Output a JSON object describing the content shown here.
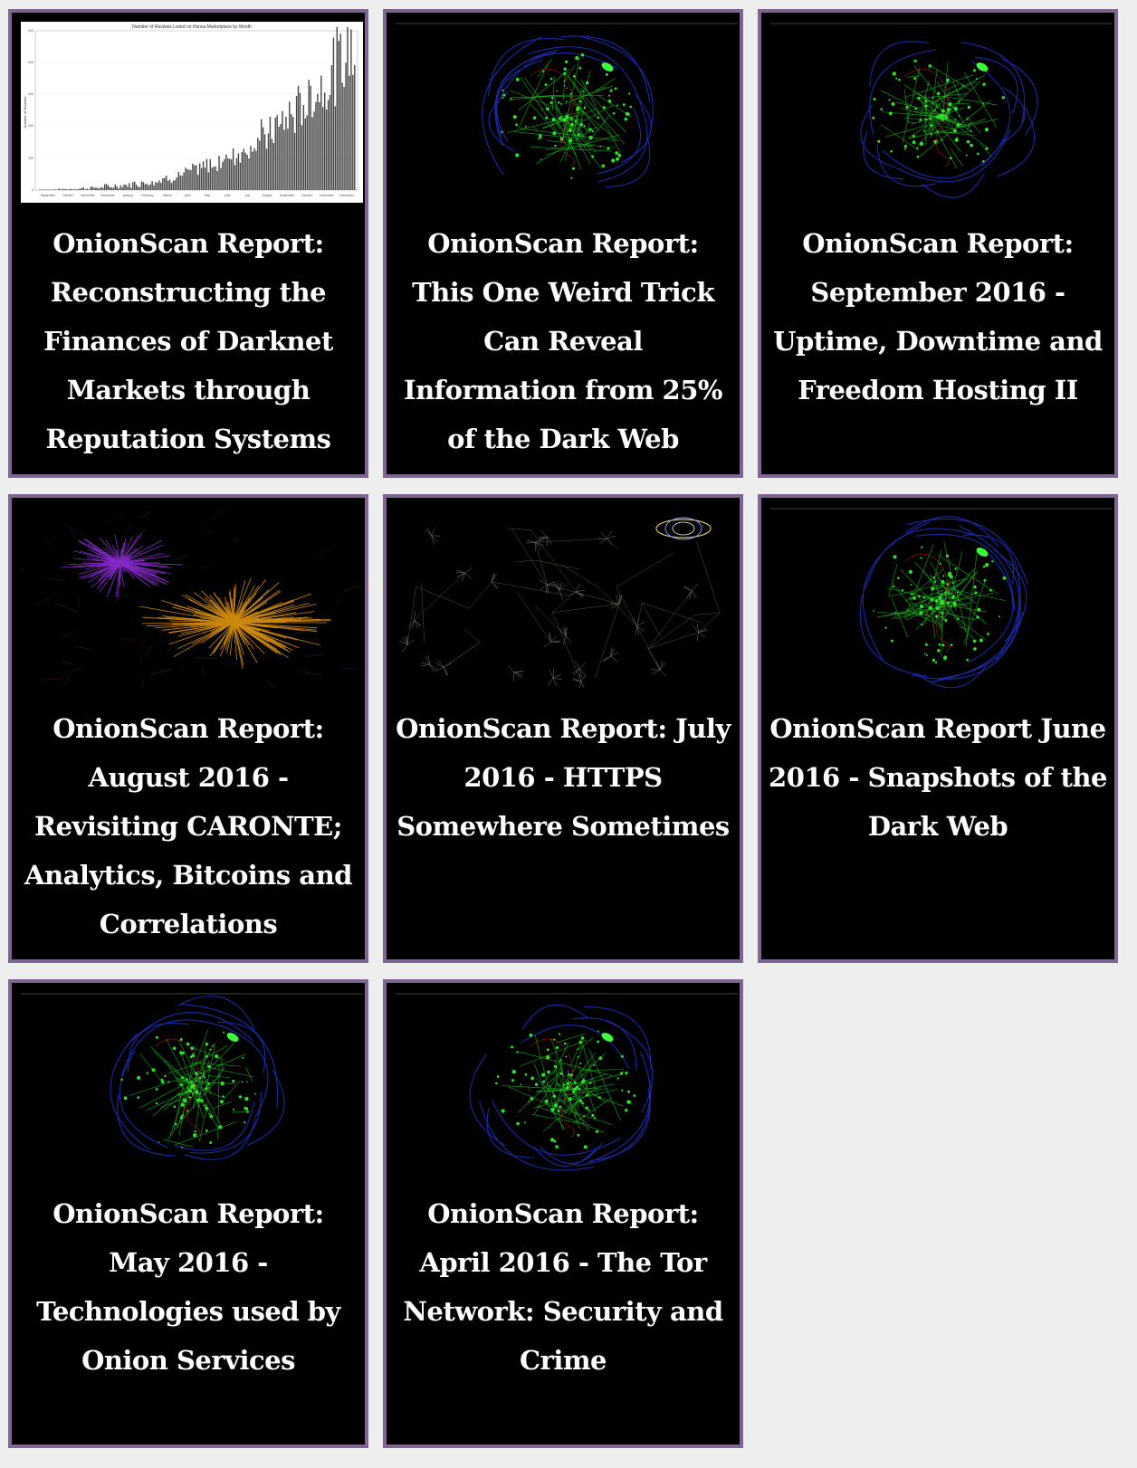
{
  "cards": [
    {
      "title": "OnionScan Report: Reconstructing the Finances of Darknet Markets through Reputation Systems",
      "thumbnail": "hansa-reviews-bar-chart"
    },
    {
      "title": "OnionScan Report: This One Weird Trick Can Reveal Information from 25% of the Dark Web",
      "thumbnail": "network-graph-green-blue"
    },
    {
      "title": "OnionScan Report: September 2016 - Uptime, Downtime and Freedom Hosting II",
      "thumbnail": "network-graph-green-blue"
    },
    {
      "title": "OnionScan Report: August 2016 - Revisiting CARONTE; Analytics, Bitcoins and Correlations",
      "thumbnail": "cluster-graph-purple-orange"
    },
    {
      "title": "OnionScan Report: July 2016 - HTTPS Somewhere Sometimes",
      "thumbnail": "sparse-network-graph"
    },
    {
      "title": "OnionScan Report June 2016 - Snapshots of the Dark Web",
      "thumbnail": "network-graph-green-blue"
    },
    {
      "title": "OnionScan Report: May 2016 - Technologies used by Onion Services",
      "thumbnail": "network-graph-green-blue"
    },
    {
      "title": "OnionScan Report: April 2016 - The Tor Network: Security and Crime",
      "thumbnail": "network-graph-green-blue"
    }
  ],
  "chart_thumbnail": {
    "title": "Number of Reviews Listed on Hansa Marketplace by Month",
    "ylabel": "Number of Reviews",
    "yticks": [
      "0",
      "100",
      "200",
      "300",
      "400",
      "500"
    ],
    "xticks": [
      "September",
      "October",
      "November",
      "December",
      "January",
      "February",
      "March",
      "April",
      "May",
      "June",
      "July",
      "August",
      "September",
      "October",
      "November",
      "December"
    ]
  }
}
